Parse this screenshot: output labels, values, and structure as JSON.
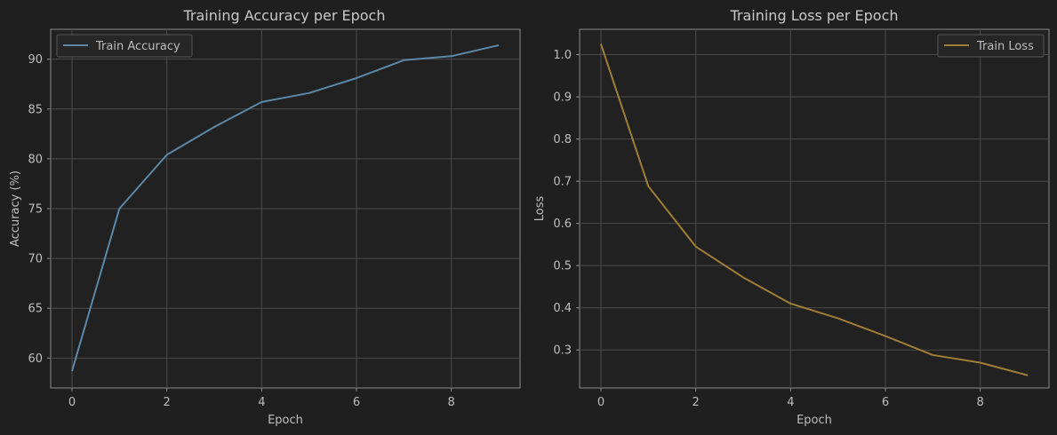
{
  "chart_data": [
    {
      "type": "line",
      "title": "Training Accuracy per Epoch",
      "xlabel": "Epoch",
      "ylabel": "Accuracy (%)",
      "x": [
        0,
        1,
        2,
        3,
        4,
        5,
        6,
        7,
        8,
        9
      ],
      "series": [
        {
          "name": "Train Accuracy",
          "values": [
            58.7,
            75.0,
            80.4,
            83.2,
            85.7,
            86.6,
            88.1,
            89.9,
            90.3,
            91.4
          ],
          "color": "#5b88a8"
        }
      ],
      "xlim": [
        -0.45,
        9.45
      ],
      "ylim": [
        57.0,
        93.0
      ],
      "xticks": [
        0,
        2,
        4,
        6,
        8
      ],
      "yticks": [
        60,
        65,
        70,
        75,
        80,
        85,
        90
      ],
      "grid": true,
      "legend": "upper-left"
    },
    {
      "type": "line",
      "title": "Training Loss per Epoch",
      "xlabel": "Epoch",
      "ylabel": "Loss",
      "x": [
        0,
        1,
        2,
        3,
        4,
        5,
        6,
        7,
        8,
        9
      ],
      "series": [
        {
          "name": "Train Loss",
          "values": [
            1.025,
            0.688,
            0.545,
            0.472,
            0.41,
            0.375,
            0.333,
            0.288,
            0.27,
            0.24
          ],
          "color": "#a27d35"
        }
      ],
      "xlim": [
        -0.45,
        9.45
      ],
      "ylim": [
        0.21,
        1.06
      ],
      "xticks": [
        0,
        2,
        4,
        6,
        8
      ],
      "yticks": [
        0.3,
        0.4,
        0.5,
        0.6,
        0.7,
        0.8,
        0.9,
        1.0
      ],
      "ytick_labels": [
        "0.3",
        "0.4",
        "0.5",
        "0.6",
        "0.7",
        "0.8",
        "0.9",
        "1.0"
      ],
      "grid": true,
      "legend": "upper-right"
    }
  ]
}
